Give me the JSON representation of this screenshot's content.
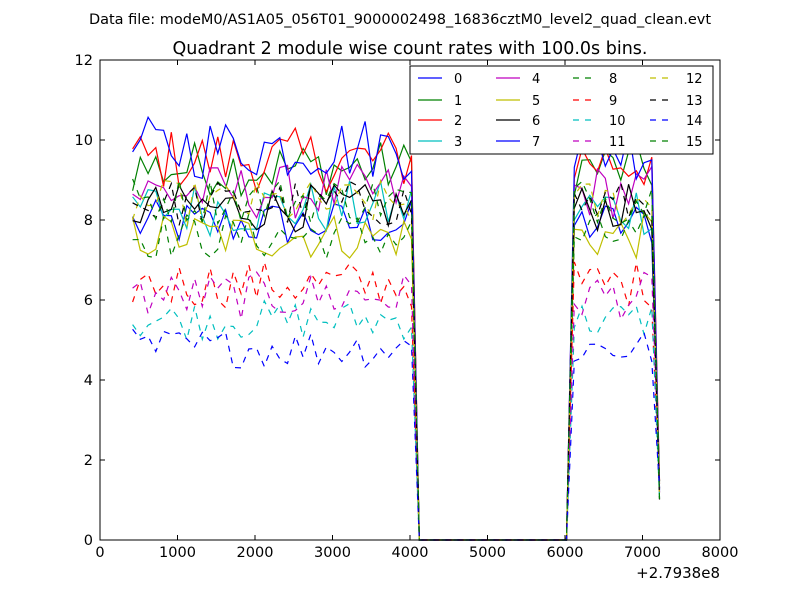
{
  "header": {
    "filename": "Data file: modeM0/AS1A05_056T01_9000002498_16836cztM0_level2_quad_clean.evt"
  },
  "chart_data": {
    "type": "line",
    "title": "Quadrant 2 module wise count rates with 100.0s bins.",
    "xlabel": "",
    "ylabel": "",
    "x_offset_label": "+2.7938e8",
    "xlim": [
      0,
      8000
    ],
    "ylim": [
      0,
      12
    ],
    "x_ticks": [
      0,
      1000,
      2000,
      3000,
      4000,
      5000,
      6000,
      7000,
      8000
    ],
    "y_ticks": [
      0,
      2,
      4,
      6,
      8,
      10,
      12
    ],
    "legend_position": "top-right",
    "legend_columns": 4,
    "x": [
      420,
      520,
      620,
      720,
      820,
      920,
      1020,
      1120,
      1220,
      1320,
      1420,
      1520,
      1620,
      1720,
      1820,
      1920,
      2020,
      2120,
      2220,
      2320,
      2420,
      2520,
      2620,
      2720,
      2820,
      2920,
      3020,
      3120,
      3220,
      3320,
      3420,
      3520,
      3620,
      3720,
      3820,
      3920,
      4020,
      4120,
      4220,
      4320,
      4420,
      4520,
      4620,
      4720,
      4820,
      4920,
      5020,
      5120,
      5220,
      5320,
      5420,
      5520,
      5620,
      5720,
      5820,
      5920,
      6020,
      6120,
      6220,
      6320,
      6420,
      6520,
      6620,
      6720,
      6820,
      6920,
      7020,
      7120,
      7220
    ],
    "gap_range": [
      4120,
      6020
    ],
    "series": [
      {
        "name": "0",
        "color": "#0000ff",
        "dash": "solid",
        "base": 7.9,
        "amp": 0.3
      },
      {
        "name": "1",
        "color": "#008000",
        "dash": "solid",
        "base": 9.3,
        "amp": 0.35
      },
      {
        "name": "2",
        "color": "#ff0000",
        "dash": "solid",
        "base": 9.5,
        "amp": 0.4
      },
      {
        "name": "3",
        "color": "#00bfbf",
        "dash": "solid",
        "base": 8.3,
        "amp": 0.35
      },
      {
        "name": "4",
        "color": "#bf00bf",
        "dash": "solid",
        "base": 8.7,
        "amp": 0.35
      },
      {
        "name": "5",
        "color": "#bfbf00",
        "dash": "solid",
        "base": 7.6,
        "amp": 0.3
      },
      {
        "name": "6",
        "color": "#000000",
        "dash": "solid",
        "base": 8.3,
        "amp": 0.3
      },
      {
        "name": "7",
        "color": "#0000ff",
        "dash": "solid",
        "base": 9.8,
        "amp": 0.4
      },
      {
        "name": "8",
        "color": "#008000",
        "dash": "dashed",
        "base": 7.6,
        "amp": 0.3
      },
      {
        "name": "9",
        "color": "#ff0000",
        "dash": "dashed",
        "base": 6.4,
        "amp": 0.3
      },
      {
        "name": "10",
        "color": "#00bfbf",
        "dash": "dashed",
        "base": 5.5,
        "amp": 0.25
      },
      {
        "name": "11",
        "color": "#bf00bf",
        "dash": "dashed",
        "base": 6.1,
        "amp": 0.3
      },
      {
        "name": "12",
        "color": "#bfbf00",
        "dash": "dashed",
        "base": 8.4,
        "amp": 0.3
      },
      {
        "name": "13",
        "color": "#000000",
        "dash": "dashed",
        "base": 8.4,
        "amp": 0.3
      },
      {
        "name": "14",
        "color": "#0000ff",
        "dash": "dashed",
        "base": 4.8,
        "amp": 0.25
      },
      {
        "name": "15",
        "color": "#008000",
        "dash": "dashed",
        "base": 8.5,
        "amp": 0.3
      }
    ]
  }
}
